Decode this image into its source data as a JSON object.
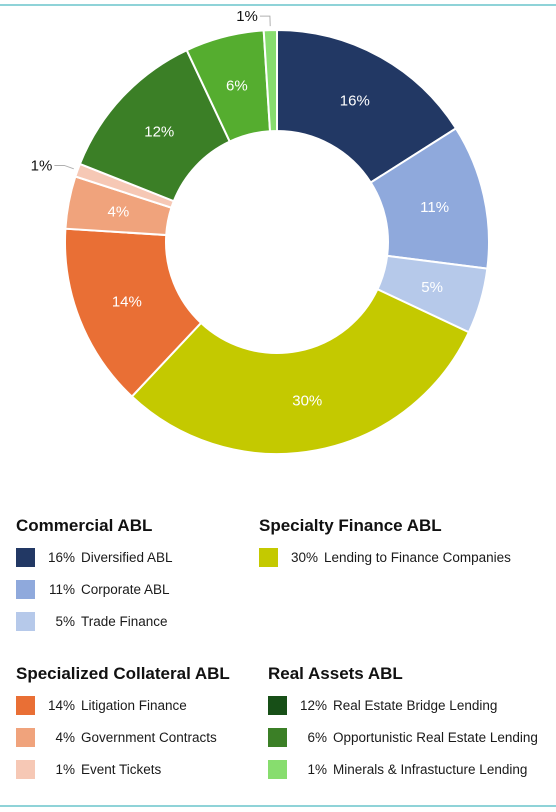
{
  "chart_data": {
    "type": "pie",
    "slices": [
      {
        "label": "Diversified ABL",
        "value": 16,
        "label_text": "16%",
        "color": "#223864",
        "group": "Commercial ABL",
        "label_style": "inside"
      },
      {
        "label": "Corporate ABL",
        "value": 11,
        "label_text": "11%",
        "color": "#8fa9dc",
        "group": "Commercial ABL",
        "label_style": "inside"
      },
      {
        "label": "Trade Finance",
        "value": 5,
        "label_text": "5%",
        "color": "#b6c9ea",
        "group": "Commercial ABL",
        "label_style": "inside"
      },
      {
        "label": "Lending to Finance Companies",
        "value": 30,
        "label_text": "30%",
        "color": "#c4c900",
        "group": "Specialty Finance ABL",
        "label_style": "inside"
      },
      {
        "label": "Litigation Finance",
        "value": 14,
        "label_text": "14%",
        "color": "#e96f35",
        "group": "Specialized Collateral ABL",
        "label_style": "inside"
      },
      {
        "label": "Government Contracts",
        "value": 4,
        "label_text": "4%",
        "color": "#f0a37c",
        "group": "Specialized Collateral ABL",
        "label_style": "inside"
      },
      {
        "label": "Event Tickets",
        "value": 1,
        "label_text": "1%",
        "color": "#f6c8b5",
        "group": "Specialized Collateral ABL",
        "label_style": "outside"
      },
      {
        "label": "Real Estate Bridge Lending",
        "value": 12,
        "label_text": "12%",
        "color": "#3b7f26",
        "group": "Real Assets ABL",
        "label_style": "inside"
      },
      {
        "label": "Opportunistic Real Estate Lending",
        "value": 6,
        "label_text": "6%",
        "color": "#55ad2f",
        "group": "Real Assets ABL",
        "label_style": "inside"
      },
      {
        "label": "Minerals & Infrastucture Lending",
        "value": 1,
        "label_text": "1%",
        "color": "#87dd6e",
        "group": "Real Assets ABL",
        "label_style": "outside"
      }
    ]
  },
  "legend": {
    "commercial": {
      "title": "Commercial ABL",
      "items": [
        {
          "pct": "16%",
          "label": "Diversified ABL",
          "color": "#223864"
        },
        {
          "pct": "11%",
          "label": "Corporate ABL",
          "color": "#8fa9dc"
        },
        {
          "pct": "5%",
          "label": "Trade Finance",
          "color": "#b6c9ea"
        }
      ]
    },
    "specialty": {
      "title": "Specialty Finance ABL",
      "items": [
        {
          "pct": "30%",
          "label": "Lending to Finance Companies",
          "color": "#c4c900"
        }
      ]
    },
    "collateral": {
      "title": "Specialized Collateral ABL",
      "items": [
        {
          "pct": "14%",
          "label": "Litigation Finance",
          "color": "#e96f35"
        },
        {
          "pct": "4%",
          "label": "Government Contracts",
          "color": "#f0a37c"
        },
        {
          "pct": "1%",
          "label": "Event Tickets",
          "color": "#f6c8b5"
        }
      ]
    },
    "real_assets": {
      "title": "Real Assets ABL",
      "items": [
        {
          "pct": "12%",
          "label": "Real Estate Bridge Lending",
          "color": "#174f17"
        },
        {
          "pct": "6%",
          "label": "Opportunistic Real Estate Lending",
          "color": "#3b7f26"
        },
        {
          "pct": "1%",
          "label": "Minerals & Infrastucture Lending",
          "color": "#87dd6e"
        }
      ]
    }
  },
  "colors": {
    "rule": "#8fd3d8",
    "leader": "#b0b0b0"
  }
}
